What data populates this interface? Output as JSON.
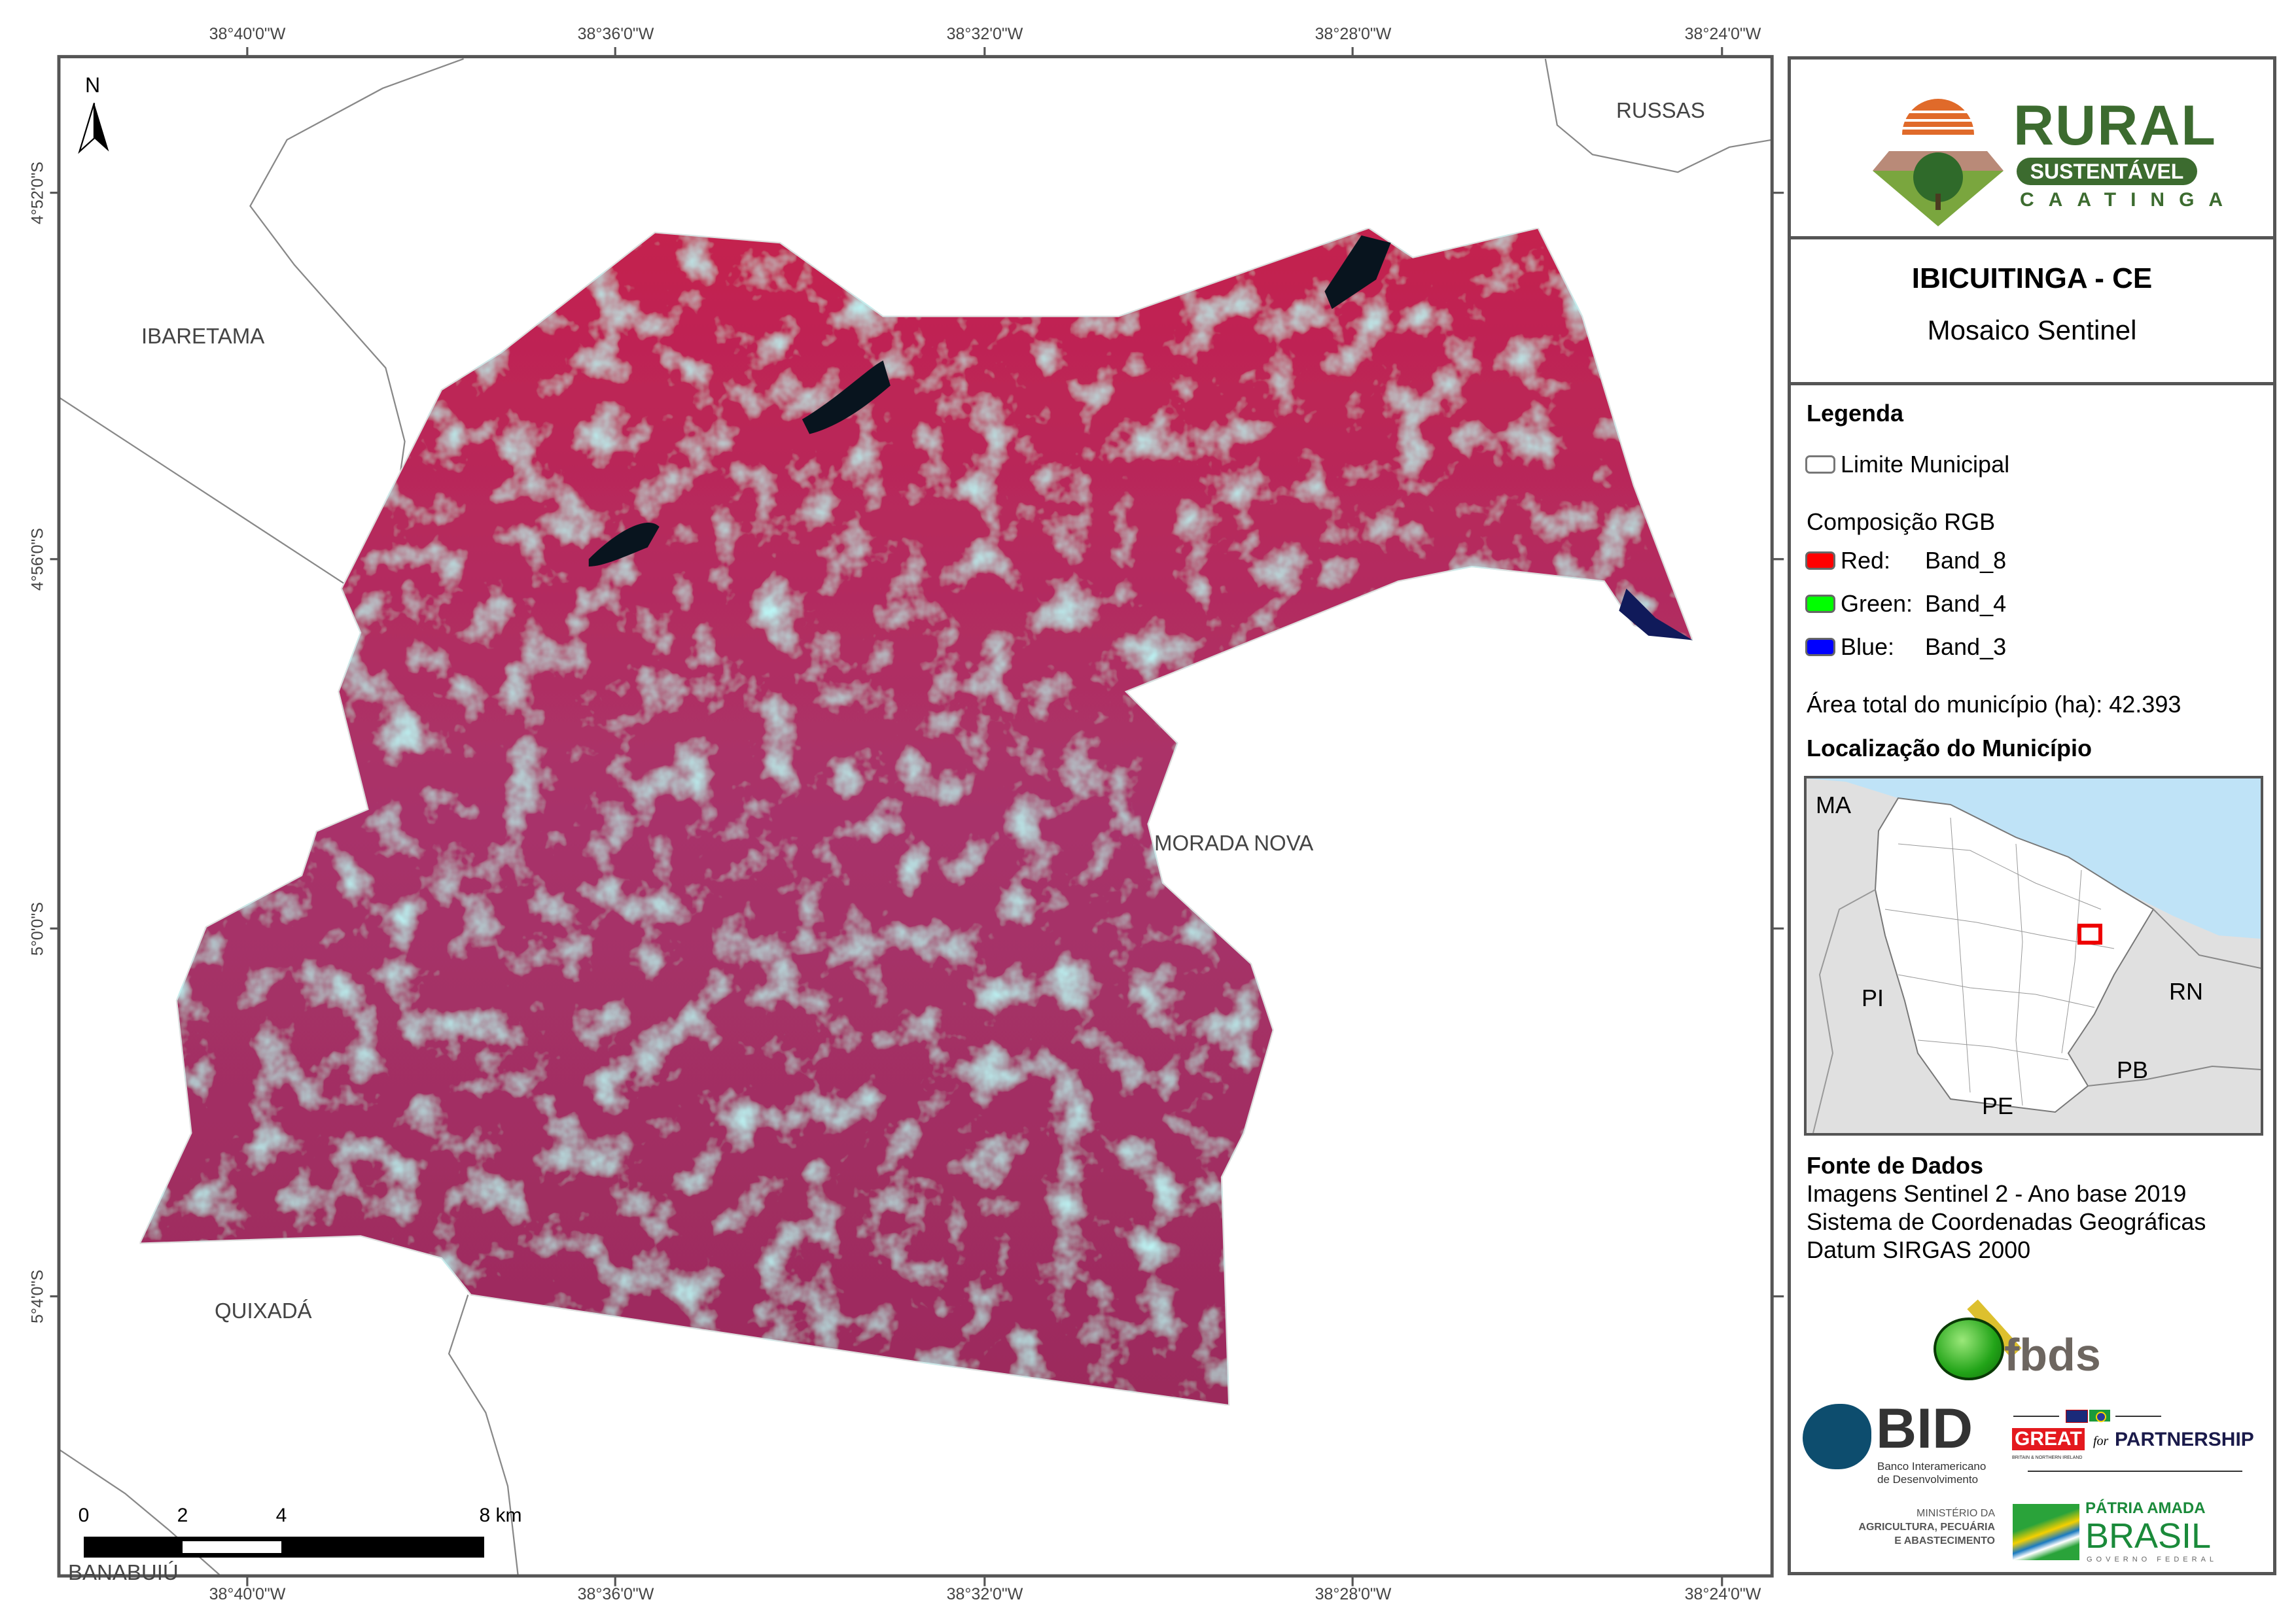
{
  "map": {
    "top_ticks": [
      "38°40'0\"W",
      "38°36'0\"W",
      "38°32'0\"W",
      "38°28'0\"W",
      "38°24'0\"W"
    ],
    "bottom_ticks": [
      "38°40'0\"W",
      "38°36'0\"W",
      "38°32'0\"W",
      "38°28'0\"W",
      "38°24'0\"W"
    ],
    "left_ticks": [
      "4°52'0\"S",
      "4°56'0\"S",
      "5°0'0\"S",
      "5°4'0\"S"
    ],
    "places": {
      "ibaretama": "IBARETAMA",
      "russas": "RUSSAS",
      "morada_nova": "MORADA NOVA",
      "quixada": "QUIXADÁ",
      "banabuiu": "BANABUIÚ"
    },
    "north_label": "N",
    "scale_bar": {
      "labels": [
        "0",
        "2",
        "4",
        "8 km"
      ]
    },
    "colors": {
      "vegetation": "#c0234f",
      "bare": "#7fe0e0",
      "water": "#0a1a2a",
      "boundary": "#888888"
    }
  },
  "panel": {
    "logo": {
      "line1": "RURAL",
      "line2": "SUSTENTÁVEL",
      "line3": "CAATINGA"
    },
    "title": "IBICUITINGA - CE",
    "subtitle": "Mosaico Sentinel",
    "legend": {
      "heading": "Legenda",
      "boundary_label": "Limite Municipal",
      "rgb_heading": "Composição RGB",
      "bands": [
        {
          "channel": "Red:",
          "band": "Band_8",
          "color": "#ff0000"
        },
        {
          "channel": "Green:",
          "band": "Band_4",
          "color": "#00ff00"
        },
        {
          "channel": "Blue:",
          "band": "Band_3",
          "color": "#0000ff"
        }
      ],
      "area_label": "Área total do município (ha):",
      "area_value": "42.393"
    },
    "location": {
      "heading": "Localização do Município",
      "states": {
        "ma": "MA",
        "pi": "PI",
        "rn": "RN",
        "pb": "PB",
        "pe": "PE"
      }
    },
    "source": {
      "heading": "Fonte de Dados",
      "lines": [
        "Imagens Sentinel 2 - Ano base 2019",
        "Sistema de Coordenadas Geográficas",
        "Datum SIRGAS 2000"
      ]
    },
    "partners": {
      "fbds": "fbds",
      "bid": "BID",
      "bid_sub1": "Banco Interamericano",
      "bid_sub2": "de Desenvolvimento",
      "great": "GREAT",
      "great_sub": "BRITAIN & NORTHERN IRELAND",
      "for": "for",
      "partnership": "PARTNERSHIP",
      "ministry1": "MINISTÉRIO DA",
      "ministry2": "AGRICULTURA, PECUÁRIA",
      "ministry3": "E ABASTECIMENTO",
      "brasil1": "PÁTRIA AMADA",
      "brasil2": "BRASIL",
      "brasil3": "GOVERNO FEDERAL"
    }
  }
}
